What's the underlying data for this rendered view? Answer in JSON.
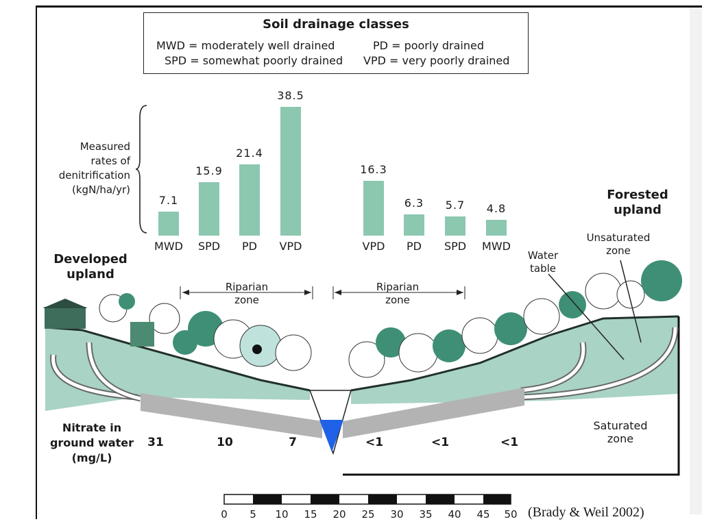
{
  "legend": {
    "title": "Soil drainage classes",
    "items": [
      {
        "abbr": "MWD",
        "sep": "=",
        "meaning": "moderately well drained"
      },
      {
        "abbr": "PD",
        "sep": "=",
        "meaning": "poorly drained"
      },
      {
        "abbr": "SPD",
        "sep": "=",
        "meaning": "somewhat poorly drained"
      },
      {
        "abbr": "VPD",
        "sep": "=",
        "meaning": "very poorly drained"
      }
    ]
  },
  "chart_data": {
    "type": "bar",
    "ylabel_lines": [
      "Measured",
      "rates of",
      "denitrification",
      "(kgN/ha/yr)"
    ],
    "left_group": {
      "categories": [
        "MWD",
        "SPD",
        "PD",
        "VPD"
      ],
      "values": [
        7.1,
        15.9,
        21.4,
        38.5
      ],
      "value_labels": [
        "7.1",
        "15.9",
        "21.4",
        "38.5"
      ]
    },
    "right_group": {
      "categories": [
        "VPD",
        "PD",
        "SPD",
        "MWD"
      ],
      "values": [
        16.3,
        6.3,
        5.7,
        4.8
      ],
      "value_labels": [
        "16.3",
        "6.3",
        "5.7",
        "4.8"
      ]
    },
    "bar_color": "#8cc7b0"
  },
  "labels": {
    "developed_upland": [
      "Developed",
      "upland"
    ],
    "forested_upland": [
      "Forested",
      "upland"
    ],
    "unsaturated_zone": [
      "Unsaturated",
      "zone"
    ],
    "water_table": [
      "Water",
      "table"
    ],
    "riparian_zone": [
      "Riparian",
      "zone"
    ],
    "saturated_zone": [
      "Saturated",
      "zone"
    ],
    "nitrate": [
      "Nitrate in",
      "ground water",
      "(mg/L)"
    ]
  },
  "nitrate_values": [
    "31",
    "10",
    "7",
    "<1",
    "<1",
    "<1"
  ],
  "scale_bar": [
    "0",
    "5",
    "10",
    "15",
    "20",
    "25",
    "30",
    "35",
    "40",
    "45",
    "50"
  ],
  "citation": "(Brady & Weil 2002)",
  "colors": {
    "ground": "#a9d3c4",
    "tree_dark": "#3f8f76",
    "water": "#1f62e8",
    "flow": "#b3b3b3"
  }
}
